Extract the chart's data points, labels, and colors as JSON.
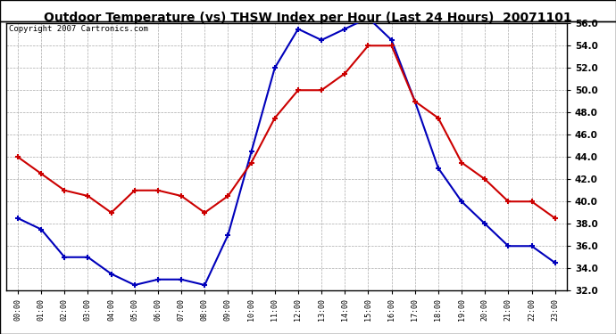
{
  "title": "Outdoor Temperature (vs) THSW Index per Hour (Last 24 Hours)  20071101",
  "copyright": "Copyright 2007 Cartronics.com",
  "hours": [
    "00:00",
    "01:00",
    "02:00",
    "03:00",
    "04:00",
    "05:00",
    "06:00",
    "07:00",
    "08:00",
    "09:00",
    "10:00",
    "11:00",
    "12:00",
    "13:00",
    "14:00",
    "15:00",
    "16:00",
    "17:00",
    "18:00",
    "19:00",
    "20:00",
    "21:00",
    "22:00",
    "23:00"
  ],
  "blue_thsw": [
    38.5,
    37.5,
    35.0,
    35.0,
    33.5,
    32.5,
    33.0,
    33.0,
    32.5,
    37.0,
    44.5,
    52.0,
    55.5,
    54.5,
    55.5,
    56.5,
    54.5,
    49.0,
    43.0,
    40.0,
    38.0,
    36.0,
    36.0,
    34.5
  ],
  "red_temp": [
    44.0,
    42.5,
    41.0,
    40.5,
    39.0,
    41.0,
    41.0,
    40.5,
    39.0,
    40.5,
    43.5,
    47.5,
    50.0,
    50.0,
    51.5,
    54.0,
    54.0,
    49.0,
    47.5,
    43.5,
    42.0,
    40.0,
    40.0,
    38.5
  ],
  "ylim": [
    32.0,
    56.0
  ],
  "yticks": [
    32.0,
    34.0,
    36.0,
    38.0,
    40.0,
    42.0,
    44.0,
    46.0,
    48.0,
    50.0,
    52.0,
    54.0,
    56.0
  ],
  "blue_color": "#0000bb",
  "red_color": "#cc0000",
  "bg_color": "#ffffff",
  "grid_color": "#aaaaaa",
  "title_fontsize": 10,
  "copyright_fontsize": 6.5
}
